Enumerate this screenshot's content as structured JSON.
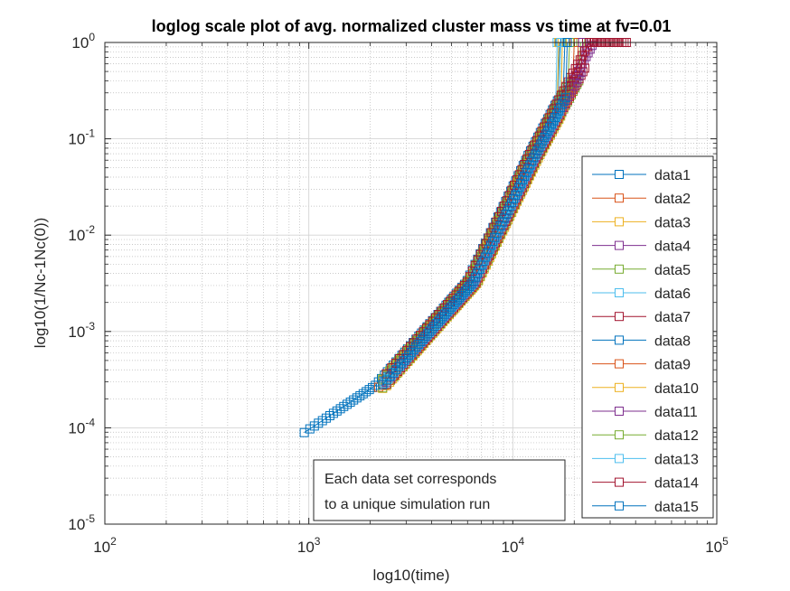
{
  "chart_data": {
    "type": "line",
    "title": "loglog scale plot of avg. normalized cluster mass vs time at fv=0.01",
    "xlabel": "log10(time)",
    "ylabel": "log10(1/Nc-1Nc(0))",
    "xscale": "log",
    "yscale": "log",
    "xlim": [
      100,
      100000
    ],
    "ylim": [
      1e-05,
      1
    ],
    "grid": true,
    "minor_grid": true,
    "marker": "square",
    "legend_position": "lower-right",
    "x_ticks": [
      {
        "value": 100,
        "base": "10",
        "exp": "2"
      },
      {
        "value": 1000,
        "base": "10",
        "exp": "3"
      },
      {
        "value": 10000,
        "base": "10",
        "exp": "4"
      },
      {
        "value": 100000,
        "base": "10",
        "exp": "5"
      }
    ],
    "y_ticks": [
      {
        "value": 1e-05,
        "base": "10",
        "exp": "-5"
      },
      {
        "value": 0.0001,
        "base": "10",
        "exp": "-4"
      },
      {
        "value": 0.001,
        "base": "10",
        "exp": "-3"
      },
      {
        "value": 0.01,
        "base": "10",
        "exp": "-2"
      },
      {
        "value": 0.1,
        "base": "10",
        "exp": "-1"
      },
      {
        "value": 1,
        "base": "10",
        "exp": "0"
      }
    ],
    "annotation": {
      "lines": [
        "Each data set corresponds",
        "to a unique simulation run"
      ]
    },
    "series": [
      {
        "name": "data1",
        "color": "#0072BD",
        "start_x": 950,
        "end_x": 17000
      },
      {
        "name": "data2",
        "color": "#D95319",
        "start_x": 2200,
        "end_x": 21000
      },
      {
        "name": "data3",
        "color": "#EDB120",
        "start_x": 2300,
        "end_x": 17500
      },
      {
        "name": "data4",
        "color": "#7E2F8E",
        "start_x": 2350,
        "end_x": 25000
      },
      {
        "name": "data5",
        "color": "#77AC30",
        "start_x": 2300,
        "end_x": 21500
      },
      {
        "name": "data6",
        "color": "#4DBEEE",
        "start_x": 2300,
        "end_x": 16500
      },
      {
        "name": "data7",
        "color": "#A2142F",
        "start_x": 2400,
        "end_x": 23000
      },
      {
        "name": "data8",
        "color": "#0072BD",
        "start_x": 2300,
        "end_x": 18000
      },
      {
        "name": "data9",
        "color": "#D95319",
        "start_x": 2350,
        "end_x": 20000
      },
      {
        "name": "data10",
        "color": "#EDB120",
        "start_x": 2300,
        "end_x": 16800
      },
      {
        "name": "data11",
        "color": "#7E2F8E",
        "start_x": 2400,
        "end_x": 22000
      },
      {
        "name": "data12",
        "color": "#77AC30",
        "start_x": 2300,
        "end_x": 19000
      },
      {
        "name": "data13",
        "color": "#4DBEEE",
        "start_x": 2350,
        "end_x": 17200
      },
      {
        "name": "data14",
        "color": "#A2142F",
        "start_x": 2400,
        "end_x": 36000
      },
      {
        "name": "data15",
        "color": "#0072BD",
        "start_x": 2300,
        "end_x": 18500
      }
    ]
  }
}
